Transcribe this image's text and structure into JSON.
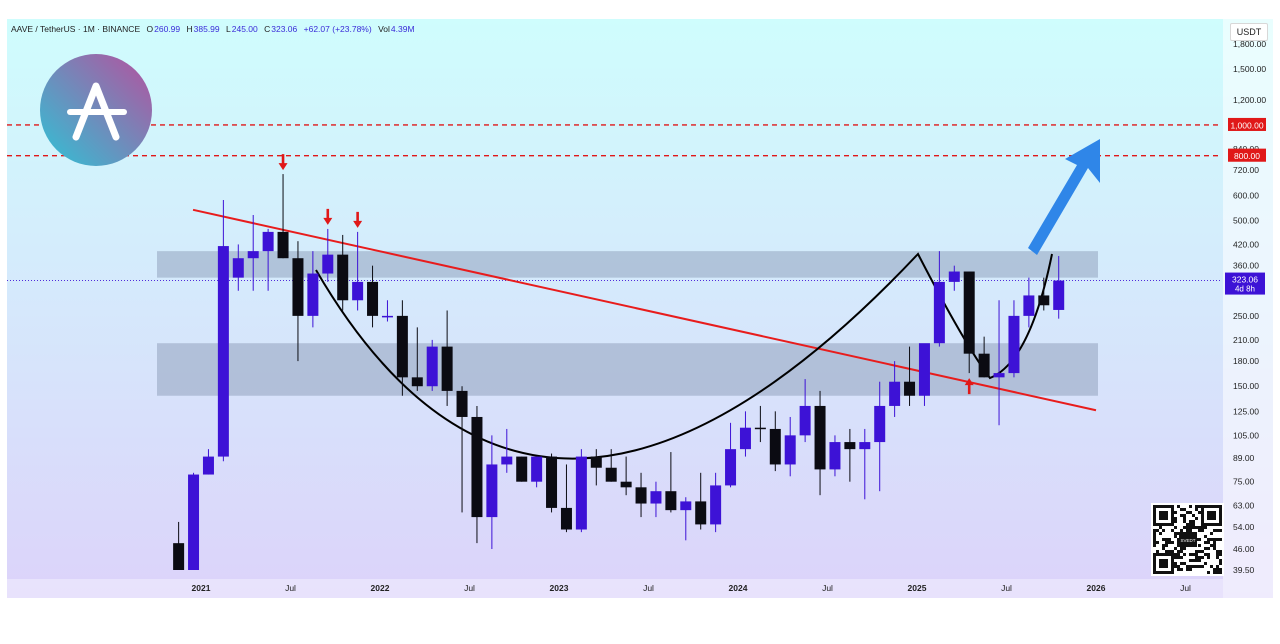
{
  "header": {
    "symbol": "AAVE / TetherUS · 1M · BINANCE",
    "open_label": "O",
    "open": "260.99",
    "high_label": "H",
    "high": "385.99",
    "low_label": "L",
    "low": "245.00",
    "close_label": "C",
    "close": "323.06",
    "change": "+62.07 (+23.78%)",
    "vol_label": "Vol",
    "vol": "4.39M"
  },
  "currency_button": "USDT",
  "logo_icon": "aave-ghost-logo",
  "qr_label": "SVEDT",
  "colors": {
    "up": "#3d12d6",
    "down": "#0b0b12",
    "trendline": "#e81c1c",
    "level_line": "#e01818",
    "zone": "#8c9bb8",
    "arrow_blue": "#2f86e8",
    "bg_top": "#cffdfd",
    "bg_bottom": "#dcd3fa"
  },
  "chart_data": {
    "type": "candlestick",
    "y_scale": "log",
    "y_ticks": [
      "1,800.00",
      "1,500.00",
      "1,200.00",
      "840.00",
      "720.00",
      "600.00",
      "500.00",
      "420.00",
      "360.00",
      "250.00",
      "210.00",
      "180.00",
      "150.00",
      "125.00",
      "105.00",
      "89.00",
      "75.00",
      "63.00",
      "54.00",
      "46.00",
      "39.50"
    ],
    "x_ticks": [
      "2021",
      "Jul",
      "2022",
      "Jul",
      "2023",
      "Jul",
      "2024",
      "Jul",
      "2025",
      "Jul",
      "2026",
      "Jul"
    ],
    "x_ticks_bold": [
      "2021",
      "2022",
      "2023",
      "2024",
      "2025",
      "2026"
    ],
    "candles": [
      [
        "2020-11",
        48,
        56,
        39.5,
        39.5
      ],
      [
        "2020-12",
        39.5,
        80,
        39.5,
        79
      ],
      [
        "2021-01",
        79,
        95,
        79,
        90
      ],
      [
        "2021-02",
        90,
        580,
        87,
        415
      ],
      [
        "2021-03",
        330,
        420,
        300,
        380
      ],
      [
        "2021-04",
        380,
        520,
        300,
        400
      ],
      [
        "2021-05",
        400,
        470,
        300,
        460
      ],
      [
        "2021-06",
        460,
        700,
        380,
        380
      ],
      [
        "2021-07",
        380,
        430,
        180,
        250
      ],
      [
        "2021-08",
        250,
        400,
        230,
        340
      ],
      [
        "2021-09",
        340,
        470,
        320,
        390
      ],
      [
        "2021-10",
        390,
        450,
        260,
        280
      ],
      [
        "2021-11",
        280,
        460,
        260,
        320
      ],
      [
        "2021-12",
        320,
        360,
        230,
        250
      ],
      [
        "2022-01",
        250,
        280,
        240,
        250
      ],
      [
        "2022-02",
        250,
        280,
        140,
        160
      ],
      [
        "2022-03",
        160,
        230,
        145,
        150
      ],
      [
        "2022-04",
        150,
        210,
        145,
        200
      ],
      [
        "2022-05",
        200,
        260,
        130,
        145
      ],
      [
        "2022-06",
        145,
        150,
        60,
        120
      ],
      [
        "2022-07",
        120,
        130,
        48,
        58
      ],
      [
        "2022-08",
        58,
        105,
        46,
        85
      ],
      [
        "2022-09",
        85,
        110,
        80,
        90
      ],
      [
        "2022-10",
        90,
        90,
        75,
        75
      ],
      [
        "2022-11",
        75,
        90,
        72,
        90
      ],
      [
        "2022-12",
        90,
        92,
        60,
        62
      ],
      [
        "2023-01",
        62,
        85,
        52,
        53
      ],
      [
        "2023-02",
        53,
        95,
        52,
        90
      ],
      [
        "2023-03",
        90,
        95,
        73,
        83
      ],
      [
        "2023-04",
        83,
        95,
        75,
        75
      ],
      [
        "2023-05",
        75,
        90,
        68,
        72
      ],
      [
        "2023-06",
        72,
        80,
        58,
        64
      ],
      [
        "2023-07",
        64,
        75,
        58,
        70
      ],
      [
        "2023-08",
        70,
        93,
        60,
        61
      ],
      [
        "2023-09",
        61,
        67,
        49,
        65
      ],
      [
        "2023-10",
        65,
        80,
        53,
        55
      ],
      [
        "2023-11",
        55,
        80,
        52,
        73
      ],
      [
        "2023-12",
        73,
        115,
        72,
        95
      ],
      [
        "2024-01",
        95,
        125,
        90,
        111
      ],
      [
        "2024-02",
        111,
        130,
        100,
        110
      ],
      [
        "2024-03",
        110,
        125,
        81,
        85
      ],
      [
        "2024-04",
        85,
        120,
        78,
        105
      ],
      [
        "2024-05",
        105,
        158,
        100,
        130
      ],
      [
        "2024-06",
        130,
        145,
        68,
        82
      ],
      [
        "2024-07",
        82,
        105,
        78,
        100
      ],
      [
        "2024-08",
        100,
        110,
        75,
        95
      ],
      [
        "2024-09",
        95,
        110,
        66,
        100
      ],
      [
        "2024-10",
        100,
        155,
        70,
        130
      ],
      [
        "2024-11",
        130,
        180,
        120,
        155
      ],
      [
        "2024-12",
        155,
        200,
        130,
        140
      ],
      [
        "2025-01",
        140,
        200,
        130,
        205
      ],
      [
        "2025-02",
        205,
        400,
        200,
        320
      ],
      [
        "2025-03",
        320,
        360,
        300,
        345
      ],
      [
        "2025-04",
        345,
        345,
        165,
        190
      ],
      [
        "2025-05",
        190,
        215,
        160,
        160
      ],
      [
        "2025-06",
        160,
        280,
        113,
        165
      ],
      [
        "2025-07",
        165,
        280,
        160,
        250
      ],
      [
        "2025-08",
        250,
        330,
        230,
        290
      ],
      [
        "2025-09",
        290,
        330,
        260,
        270
      ],
      [
        "2025-10",
        260.99,
        385.99,
        245,
        323.06
      ]
    ],
    "horizontal_levels": [
      1000,
      800
    ],
    "level_labels": [
      "1,000.00",
      "800.00"
    ],
    "zones": [
      [
        330,
        400
      ],
      [
        140,
        205
      ]
    ],
    "trendline": [
      [
        "2020-12-15",
        540
      ],
      [
        "2026-01-01",
        126
      ]
    ],
    "last_price_label": "323.06",
    "countdown_label": "4d 8h",
    "arrows_down": [
      "2021-06",
      "2021-09",
      "2021-11"
    ],
    "arrows_up": [
      "2025-04"
    ]
  }
}
